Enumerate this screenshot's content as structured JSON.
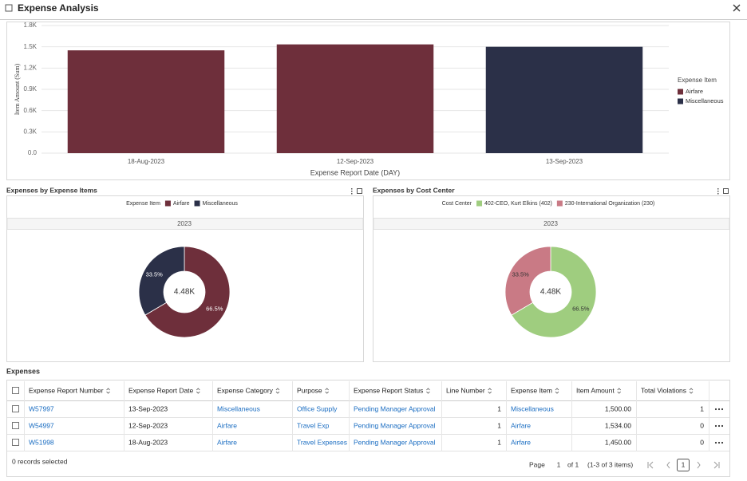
{
  "header": {
    "title": "Expense Analysis"
  },
  "chart_data": [
    {
      "type": "bar",
      "x_label": "Expense Report Date (DAY)",
      "y_label": "Item Amount (Sum)",
      "categories": [
        "18-Aug-2023",
        "12-Sep-2023",
        "13-Sep-2023"
      ],
      "series": [
        {
          "name": "Airfare",
          "color": "#6e2f3b",
          "values": [
            1450,
            1534,
            null
          ]
        },
        {
          "name": "Miscellaneous",
          "color": "#2b3048",
          "values": [
            null,
            null,
            1500
          ]
        }
      ],
      "legend_title": "Expense Item",
      "legend": "right",
      "ylim": [
        0,
        1800
      ],
      "yticks": [
        {
          "value": 0,
          "label": "0.0"
        },
        {
          "value": 300,
          "label": "0.3K"
        },
        {
          "value": 600,
          "label": "0.6K"
        },
        {
          "value": 900,
          "label": "0.9K"
        },
        {
          "value": 1200,
          "label": "1.2K"
        },
        {
          "value": 1500,
          "label": "1.5K"
        },
        {
          "value": 1800,
          "label": "1.8K"
        }
      ],
      "grid": true
    },
    {
      "type": "pie",
      "title": "Expenses by Expense Items",
      "legend_title": "Expense Item",
      "section": "2023",
      "center_label": "4.48K",
      "categories": [
        "Airfare",
        "Miscellaneous"
      ],
      "values": [
        66.5,
        33.5
      ],
      "value_labels": [
        "66.5%",
        "33.5%"
      ],
      "colors": [
        "#6e2f3b",
        "#2b3048"
      ]
    },
    {
      "type": "pie",
      "title": "Expenses by Cost Center",
      "legend_title": "Cost Center",
      "section": "2023",
      "center_label": "4.48K",
      "categories": [
        "402-CEO, Kurt Elkins (402)",
        "230-International Organization (230)"
      ],
      "values": [
        66.5,
        33.5
      ],
      "value_labels": [
        "66.5%",
        "33.5%"
      ],
      "colors": [
        "#9fcd7f",
        "#c97a85"
      ]
    }
  ],
  "table": {
    "title": "Expenses",
    "columns": [
      "Expense Report Number",
      "Expense Report Date",
      "Expense Category",
      "Purpose",
      "Expense Report Status",
      "Line Number",
      "Expense Item",
      "Item Amount",
      "Total Violations"
    ],
    "rows": [
      [
        "W57997",
        "13-Sep-2023",
        "Miscellaneous",
        "Office Supply",
        "Pending Manager Approval",
        1,
        "Miscellaneous",
        "1,500.00",
        1
      ],
      [
        "W54997",
        "12-Sep-2023",
        "Airfare",
        "Travel Exp",
        "Pending Manager Approval",
        1,
        "Airfare",
        "1,534.00",
        0
      ],
      [
        "W51998",
        "18-Aug-2023",
        "Airfare",
        "Travel Expenses",
        "Pending Manager Approval",
        1,
        "Airfare",
        "1,450.00",
        0
      ]
    ]
  },
  "footer": {
    "selection": "0 records selected",
    "page_label": "Page",
    "page_input": 1,
    "page_of": "of 1",
    "range": "(1-3 of 3 items)",
    "page_button": 1
  }
}
